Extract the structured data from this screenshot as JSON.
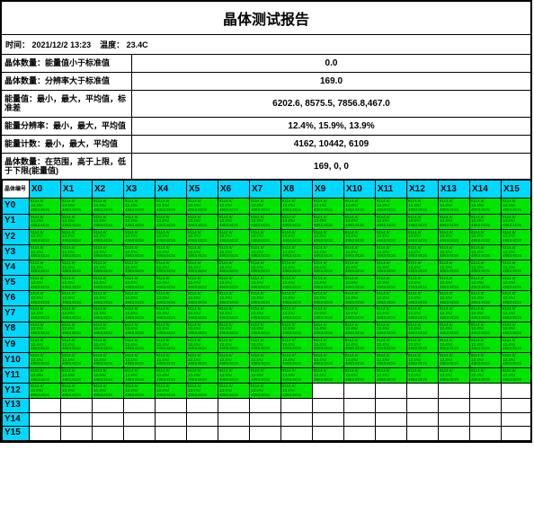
{
  "title": "晶体测试报告",
  "meta": {
    "datetime_label": "时间：",
    "datetime": "2021/12/2 13:23",
    "temp_label": "温度：",
    "temp": "23.4C"
  },
  "rows": [
    {
      "label": "晶体数量：能量值小于标准值",
      "value": "0.0"
    },
    {
      "label": "晶体数量：分辨率大于标准值",
      "value": "169.0"
    },
    {
      "label": "能量值：最小，最大，平均值，标准差",
      "value": "6202.6, 8575.5, 7856.8,467.0"
    },
    {
      "label": "能量分辨率：最小，最大，平均值",
      "value": "12.4%, 15.9%, 13.9%"
    },
    {
      "label": "能量计数：最小，最大，平均值",
      "value": "4162, 10442, 6109"
    },
    {
      "label": "晶体数量：在范围，高于上限，低于下限(能量值)",
      "value": "169, 0, 0"
    }
  ],
  "grid": {
    "corner": "晶体编号",
    "cols": 16,
    "rowcount": 16,
    "col_prefix": "X",
    "row_prefix": "Y",
    "green_rows": [
      0,
      1,
      2,
      3,
      4,
      5,
      6,
      7,
      8,
      9,
      10,
      11,
      12
    ],
    "row12_green_cols": [
      0,
      1,
      2,
      3,
      4,
      5,
      6,
      7,
      8
    ],
    "cell_template": [
      "8114.6/",
      "13.4%/",
      "4863.6Cnt"
    ],
    "colors": {
      "header_bg": "#00d8ff",
      "cell_green": "#00e600",
      "border": "#000000",
      "bg": "#ffffff"
    },
    "fontsize": {
      "header": 10,
      "cell": 4.5
    }
  }
}
